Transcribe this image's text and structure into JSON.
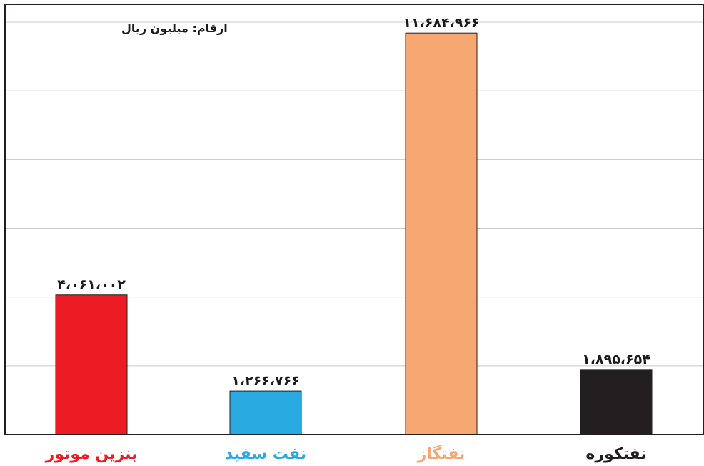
{
  "chart_data": {
    "type": "bar",
    "unit_note": "ارقام: میلیون ریال",
    "categories": [
      "بنزین موتور",
      "نفت سفید",
      "نفتگاز",
      "نفتکوره"
    ],
    "values": [
      4061002,
      1266766,
      11684966,
      1895654
    ],
    "value_labels": [
      "۴،۰۶۱،۰۰۲",
      "۱،۲۶۶،۷۶۶",
      "۱۱،۶۸۴،۹۶۶",
      "۱،۸۹۵،۶۵۴"
    ],
    "colors": [
      "#ED1C24",
      "#29ABE2",
      "#F7A872",
      "#231F20"
    ],
    "label_colors": [
      "#ED1C24",
      "#29ABE2",
      "#F7A872",
      "#231F20"
    ],
    "ylim": [
      0,
      12500000
    ],
    "grid": true,
    "xlabel": "",
    "ylabel": ""
  }
}
